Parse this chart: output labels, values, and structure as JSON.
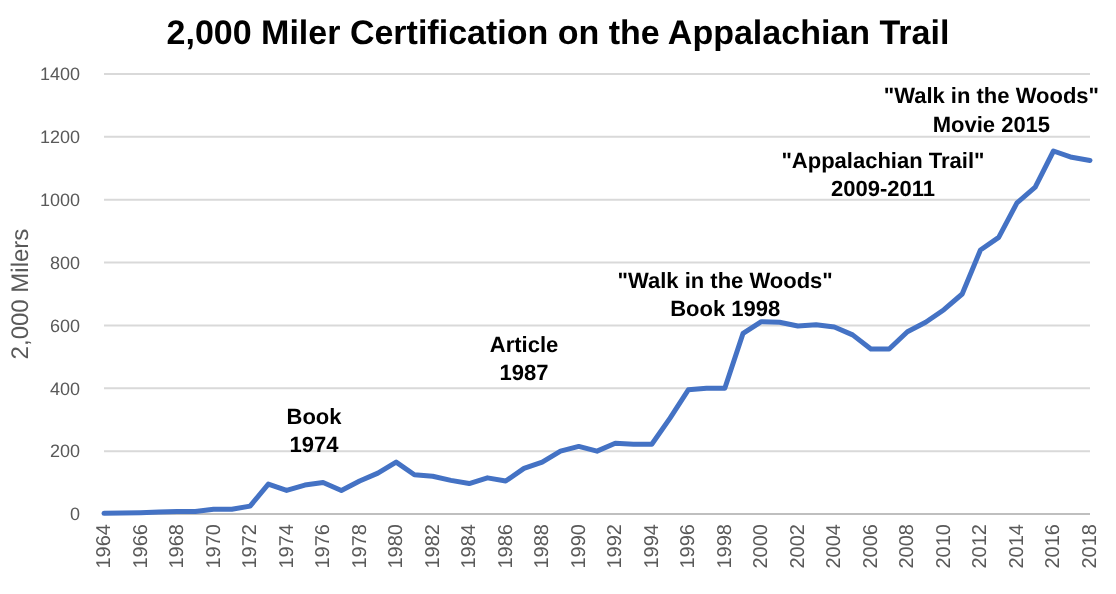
{
  "chart_data": {
    "type": "line",
    "title": "2,000 Miler Certification on the Appalachian Trail",
    "ylabel": "2,000 Milers",
    "categories": [
      "1964",
      null,
      "1966",
      null,
      "1968",
      null,
      "1970",
      null,
      "1972",
      null,
      "1974",
      null,
      "1976",
      null,
      "1978",
      null,
      "1980",
      null,
      "1982",
      null,
      "1984",
      null,
      "1986",
      null,
      "1988",
      null,
      "1990",
      null,
      "1992",
      null,
      "1994",
      null,
      "1996",
      null,
      "1998",
      null,
      "2000",
      null,
      "2002",
      null,
      "2004",
      null,
      "2006",
      null,
      "2008",
      null,
      "2010",
      null,
      "2012",
      null,
      "2014",
      null,
      "2016",
      null,
      "2018"
    ],
    "series": [
      {
        "color": "#4472c4",
        "values": [
          2,
          3,
          4,
          6,
          8,
          8,
          15,
          15,
          25,
          95,
          75,
          92,
          100,
          75,
          105,
          130,
          165,
          125,
          120,
          107,
          97,
          115,
          105,
          145,
          165,
          200,
          215,
          200,
          225,
          222,
          222,
          305,
          395,
          400,
          400,
          575,
          612,
          610,
          598,
          602,
          595,
          570,
          525,
          525,
          580,
          610,
          650,
          700,
          840,
          880,
          990,
          1040,
          1155,
          1135,
          1125
        ]
      }
    ],
    "ylim": [
      0,
      1400
    ],
    "yticks": [
      0,
      200,
      400,
      600,
      800,
      1000,
      1200,
      1400
    ],
    "grid": "y",
    "marker": "none",
    "line_style": "solid",
    "annotations": [
      "Book\n1974",
      "Article\n1987",
      "\"Walk in the Woods\"\nBook 1998",
      "\"Appalachian Trail\"\n2009-2011",
      "\"Walk in the Woods\"\nMovie 2015"
    ]
  }
}
